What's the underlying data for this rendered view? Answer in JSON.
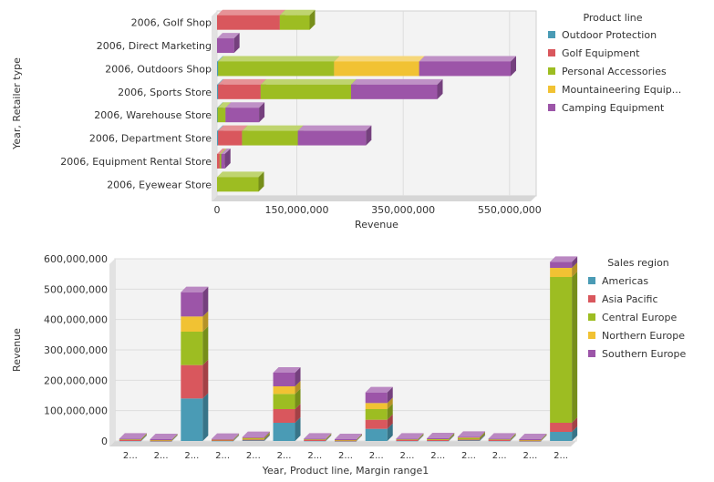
{
  "chart_data": [
    {
      "type": "bar",
      "orientation": "horizontal",
      "stacked": true,
      "ylabel": "Year, Retailer type",
      "xlabel": "Revenue",
      "xlim": [
        0,
        600000000
      ],
      "x_tick_labels": [
        "0",
        "150,000,000",
        "350,000,000",
        "550,000,000"
      ],
      "x_tick_values": [
        0,
        150000000,
        350000000,
        550000000
      ],
      "grid": true,
      "legend_title": "Product line",
      "legend_position": "right",
      "categories": [
        "2006, Golf Shop",
        "2006, Direct Marketing",
        "2006, Outdoors Shop",
        "2006, Sports Store",
        "2006, Warehouse Store",
        "2006, Department Store",
        "2006, Equipment Rental Store",
        "2006, Eyewear Store"
      ],
      "series": [
        {
          "name": "Outdoor Protection",
          "color": "#4a9bb5",
          "values": [
            0,
            0,
            2000000,
            2000000,
            1000000,
            2000000,
            0,
            0
          ]
        },
        {
          "name": "Golf Equipment",
          "color": "#d9575d",
          "values": [
            118000000,
            0,
            0,
            80000000,
            0,
            45000000,
            5000000,
            0
          ]
        },
        {
          "name": "Personal Accessories",
          "color": "#9dbd22",
          "values": [
            56000000,
            0,
            218000000,
            170000000,
            15000000,
            105000000,
            3000000,
            78000000
          ]
        },
        {
          "name": "Mountaineering Equip...",
          "color": "#f1c233",
          "values": [
            0,
            0,
            160000000,
            0,
            0,
            0,
            0,
            0
          ]
        },
        {
          "name": "Camping Equipment",
          "color": "#9c55a8",
          "values": [
            0,
            32000000,
            172000000,
            162000000,
            63000000,
            128000000,
            7000000,
            0
          ]
        }
      ]
    },
    {
      "type": "bar",
      "orientation": "vertical",
      "stacked": true,
      "xlabel": "Year, Product line, Margin range1",
      "ylabel": "Revenue",
      "ylim": [
        0,
        600000000
      ],
      "y_tick_labels": [
        "0",
        "100,000,000",
        "200,000,000",
        "300,000,000",
        "400,000,000",
        "500,000,000",
        "600,000,000"
      ],
      "y_tick_values": [
        0,
        100000000,
        200000000,
        300000000,
        400000000,
        500000000,
        600000000
      ],
      "grid": true,
      "legend_title": "Sales region",
      "legend_position": "right",
      "categories": [
        "2...",
        "2...",
        "2...",
        "2...",
        "2...",
        "2...",
        "2...",
        "2...",
        "2...",
        "2...",
        "2...",
        "2...",
        "2...",
        "2...",
        "2..."
      ],
      "series": [
        {
          "name": "Americas",
          "color": "#4a9bb5",
          "values": [
            2000000,
            1000000,
            140000000,
            2000000,
            3000000,
            60000000,
            2000000,
            1000000,
            40000000,
            2000000,
            2000000,
            3000000,
            2000000,
            1000000,
            30000000
          ]
        },
        {
          "name": "Asia Pacific",
          "color": "#d9575d",
          "values": [
            1000000,
            1000000,
            110000000,
            1000000,
            2000000,
            45000000,
            1000000,
            1000000,
            30000000,
            1000000,
            1000000,
            2000000,
            1000000,
            1000000,
            30000000
          ]
        },
        {
          "name": "Central Europe",
          "color": "#9dbd22",
          "values": [
            3000000,
            2000000,
            110000000,
            2000000,
            4000000,
            50000000,
            3000000,
            2000000,
            35000000,
            3000000,
            4000000,
            5000000,
            3000000,
            2000000,
            480000000
          ]
        },
        {
          "name": "Northern Europe",
          "color": "#f1c233",
          "values": [
            1000000,
            1000000,
            50000000,
            1000000,
            2000000,
            25000000,
            1000000,
            1000000,
            20000000,
            1000000,
            1000000,
            2000000,
            1000000,
            1000000,
            30000000
          ]
        },
        {
          "name": "Southern Europe",
          "color": "#9c55a8",
          "values": [
            1000000,
            1000000,
            80000000,
            1000000,
            2000000,
            45000000,
            1000000,
            1000000,
            35000000,
            1000000,
            1000000,
            2000000,
            1000000,
            1000000,
            20000000
          ]
        }
      ]
    }
  ]
}
